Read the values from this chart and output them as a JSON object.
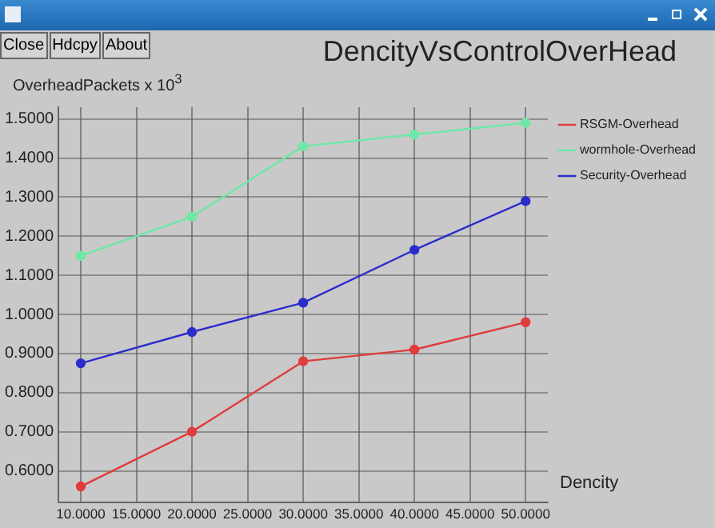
{
  "chart_data": {
    "type": "line",
    "title": "DencityVsControlOverHead",
    "xlabel": "Dencity",
    "ylabel": "OverheadPackets x 10$^{3}$",
    "annotations": [
      "Close",
      "Hdcpy",
      "About"
    ],
    "x": [
      10,
      20,
      30,
      40,
      50
    ],
    "series": [
      {
        "name": "RSGM-Overhead",
        "color": "#e03c3c",
        "values": [
          0.56,
          0.7,
          0.88,
          0.91,
          0.98
        ]
      },
      {
        "name": "wormhole-Overhead",
        "color": "#6ee8a6",
        "values": [
          1.15,
          1.25,
          1.43,
          1.46,
          1.49
        ]
      },
      {
        "name": "Security-Overhead",
        "color": "#2c2ccc",
        "values": [
          0.875,
          0.955,
          1.03,
          1.165,
          1.29
        ]
      }
    ],
    "xlim": [
      8,
      52
    ],
    "ylim": [
      0.52,
      1.53
    ],
    "xticks": [
      {
        "value": 10,
        "label": "10.0000"
      },
      {
        "value": 15,
        "label": "15.0000"
      },
      {
        "value": 20,
        "label": "20.0000"
      },
      {
        "value": 25,
        "label": "25.0000"
      },
      {
        "value": 30,
        "label": "30.0000"
      },
      {
        "value": 35,
        "label": "35.0000"
      },
      {
        "value": 40,
        "label": "40.0000"
      },
      {
        "value": 45,
        "label": "45.0000"
      },
      {
        "value": 50,
        "label": "50.0000"
      }
    ],
    "yticks": [
      {
        "value": 0.6,
        "label": "0.6000"
      },
      {
        "value": 0.7,
        "label": "0.7000"
      },
      {
        "value": 0.8,
        "label": "0.8000"
      },
      {
        "value": 0.9,
        "label": "0.9000"
      },
      {
        "value": 1.0,
        "label": "1.0000"
      },
      {
        "value": 1.1,
        "label": "1.1000"
      },
      {
        "value": 1.2,
        "label": "1.2000"
      },
      {
        "value": 1.3,
        "label": "1.3000"
      },
      {
        "value": 1.4,
        "label": "1.4000"
      },
      {
        "value": 1.5,
        "label": "1.5000"
      }
    ],
    "grid": true,
    "legend": "top right",
    "marker": "circle",
    "line_style": "solid"
  }
}
